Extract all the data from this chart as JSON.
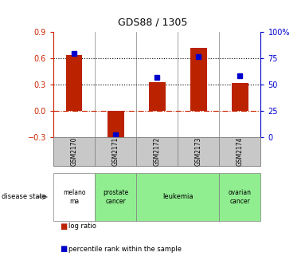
{
  "title": "GDS88 / 1305",
  "samples": [
    "GSM2170",
    "GSM2171",
    "GSM2172",
    "GSM2173",
    "GSM2174"
  ],
  "log_ratio": [
    0.64,
    -0.38,
    0.33,
    0.72,
    0.32
  ],
  "percentile_rank": [
    80,
    2,
    57,
    77,
    58
  ],
  "ylim_left": [
    -0.3,
    0.9
  ],
  "ylim_right": [
    0,
    100
  ],
  "yticks_left": [
    -0.3,
    0.0,
    0.3,
    0.6,
    0.9
  ],
  "yticks_right": [
    0,
    25,
    50,
    75,
    100
  ],
  "ytick_labels_right": [
    "0",
    "25",
    "50",
    "75",
    "100%"
  ],
  "hlines": [
    0.3,
    0.6
  ],
  "bar_color": "#BB2200",
  "dot_color": "#0000CC",
  "zero_line_color": "#CC2200",
  "bg_color": "#FFFFFF",
  "label_color_left": "#CC2200",
  "label_color_right": "#0000CC",
  "legend_bar": "log ratio",
  "legend_dot": "percentile rank within the sample",
  "sample_bg": "#C8C8C8",
  "melanoma_bg": "#FFFFFF",
  "green_bg": "#90EE90",
  "disease_spans": [
    {
      "start": 0,
      "end": 1,
      "label": "melano\nma",
      "color": "#FFFFFF"
    },
    {
      "start": 1,
      "end": 2,
      "label": "prostate\ncancer",
      "color": "#90EE90"
    },
    {
      "start": 2,
      "end": 4,
      "label": "leukemia",
      "color": "#90EE90"
    },
    {
      "start": 4,
      "end": 5,
      "label": "ovarian\ncancer",
      "color": "#90EE90"
    }
  ]
}
